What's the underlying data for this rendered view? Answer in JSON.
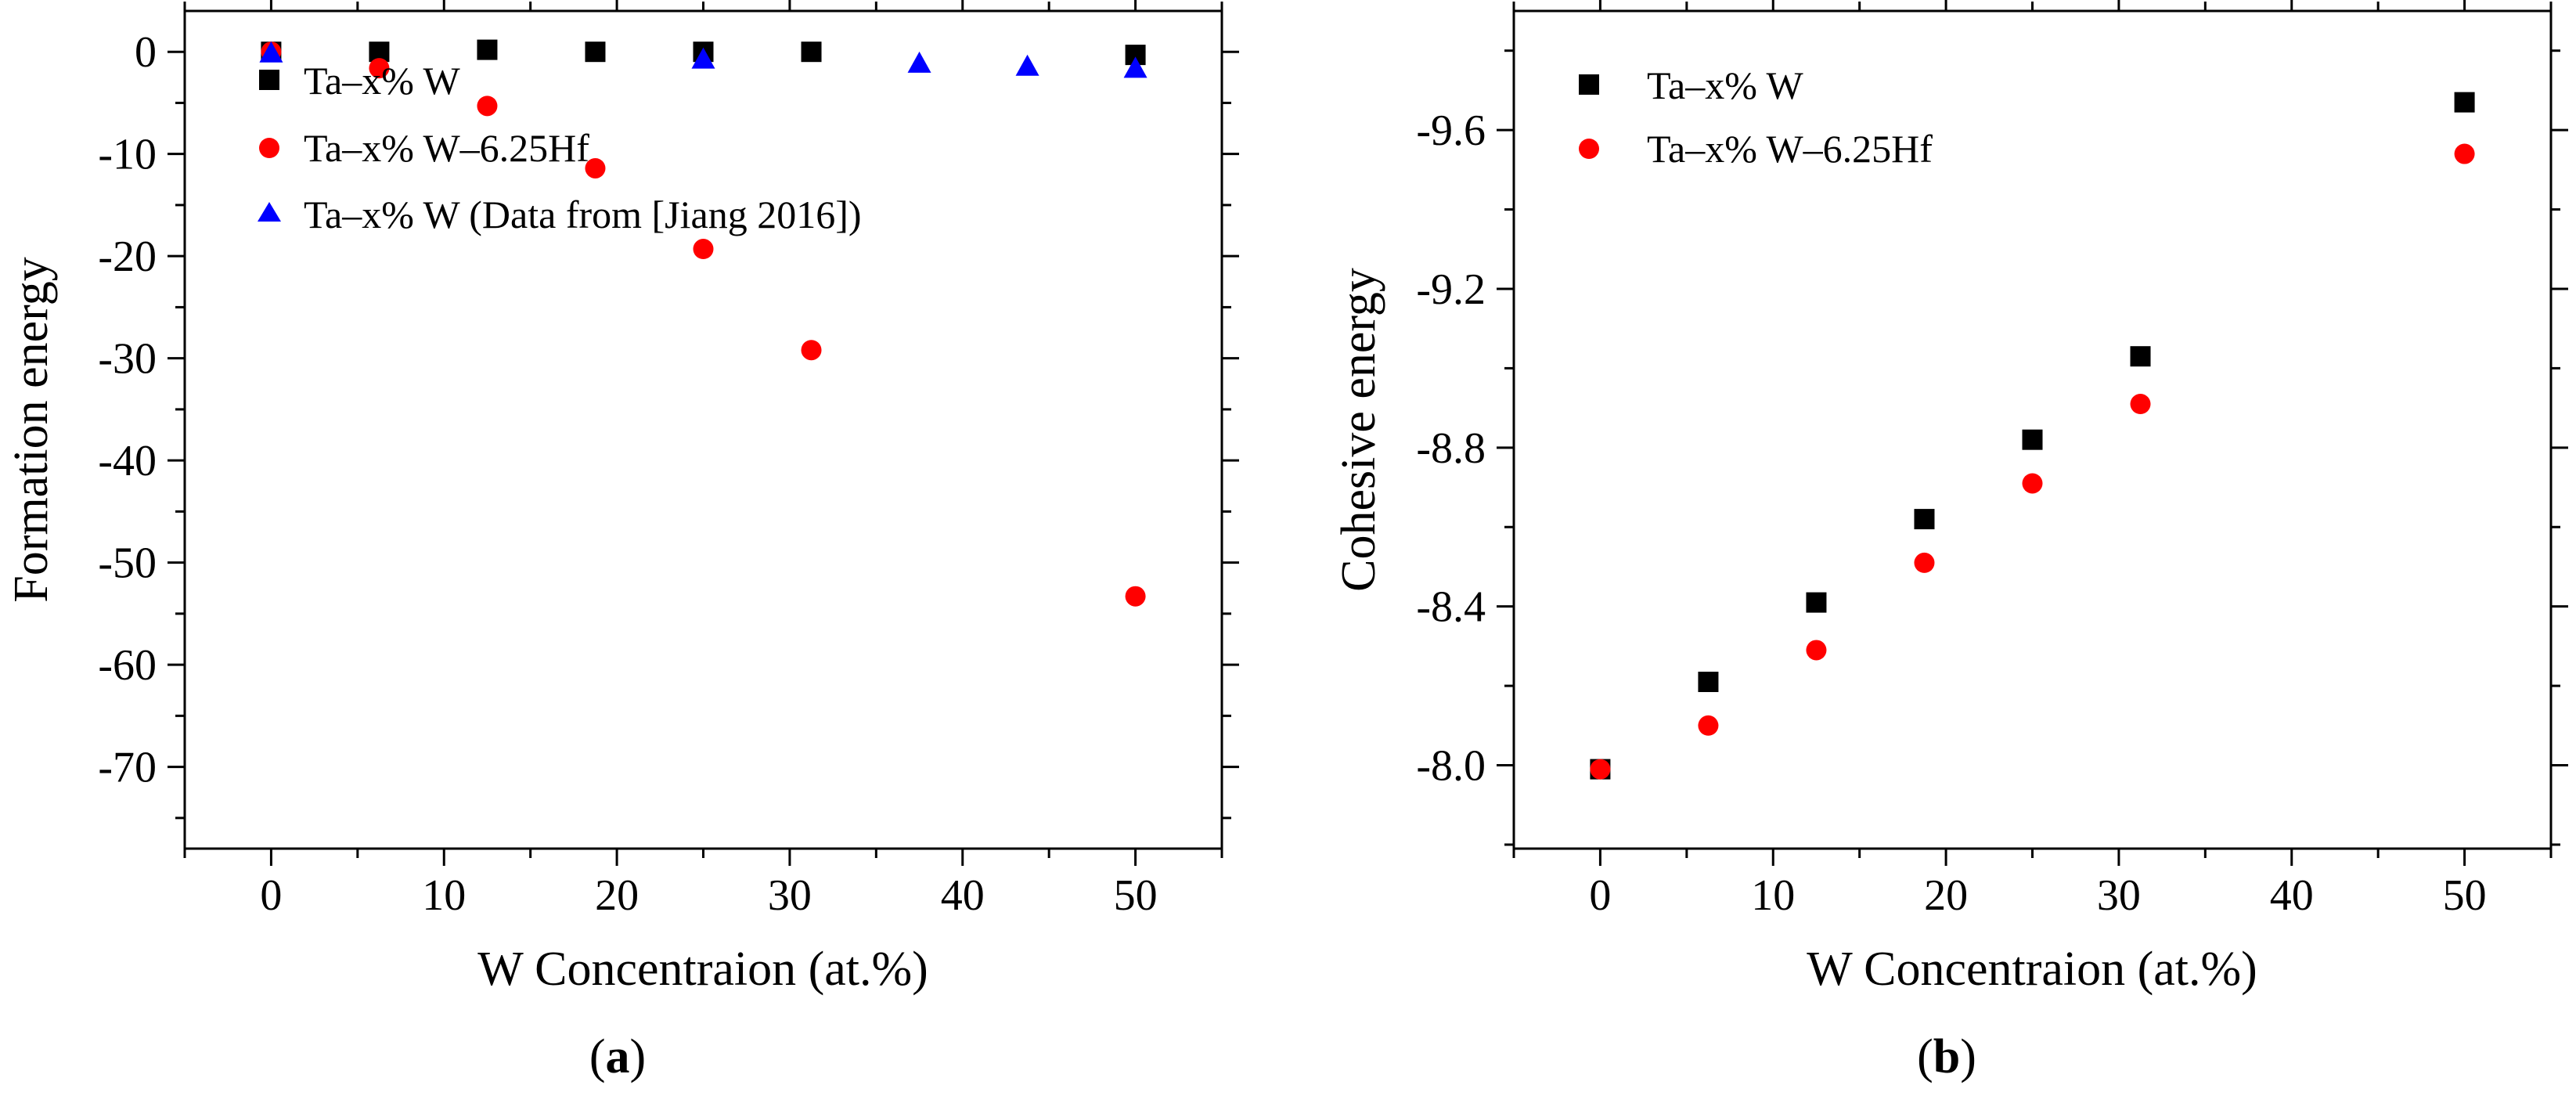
{
  "chart_data": [
    {
      "type": "scatter",
      "panel_label": "a",
      "xlabel": "W Concentraion (at.%)",
      "ylabel": "Formation energy",
      "xlim": [
        -5,
        55
      ],
      "ylim": [
        -78,
        4
      ],
      "y_inverted": true,
      "xticks": [
        0,
        10,
        20,
        30,
        40,
        50
      ],
      "xtick_labels": [
        "0",
        "10",
        "20",
        "30",
        "40",
        "50"
      ],
      "yticks": [
        0,
        -10,
        -20,
        -30,
        -40,
        -50,
        -60,
        -70
      ],
      "ytick_labels": [
        "0",
        "-10",
        "-20",
        "-30",
        "-40",
        "-50",
        "-60",
        "-70"
      ],
      "legend_position": "top-left",
      "series": [
        {
          "name": "Ta–x% W",
          "marker": "square",
          "color": "#000000",
          "x": [
            0,
            6.25,
            12.5,
            18.75,
            25,
            31.25,
            50
          ],
          "y": [
            0,
            0,
            0.2,
            0,
            0,
            0,
            -0.3
          ]
        },
        {
          "name": "Ta–x% W–6.25Hf",
          "marker": "circle",
          "color": "#ff0000",
          "x": [
            0,
            6.25,
            12.5,
            18.75,
            25,
            31.25,
            50
          ],
          "y": [
            0,
            -1.6,
            -5.3,
            -11.4,
            -19.3,
            -29.2,
            -53.3
          ]
        },
        {
          "name": "Ta–x% W (Data from [Jiang 2016])",
          "marker": "triangle",
          "color": "#0000ff",
          "x": [
            0,
            25,
            37.5,
            43.75,
            50
          ],
          "y": [
            -0.2,
            -0.8,
            -1.2,
            -1.5,
            -1.7
          ]
        }
      ]
    },
    {
      "type": "scatter",
      "panel_label": "b",
      "xlabel": "W Concentraion (at.%)",
      "ylabel": "Cohesive energy",
      "xlim": [
        -5,
        55
      ],
      "ylim": [
        -7.79,
        -9.9
      ],
      "y_inverted": true,
      "xticks": [
        0,
        10,
        20,
        30,
        40,
        50
      ],
      "xtick_labels": [
        "0",
        "10",
        "20",
        "30",
        "40",
        "50"
      ],
      "yticks": [
        -8.0,
        -8.4,
        -8.8,
        -9.2,
        -9.6
      ],
      "ytick_labels": [
        "-8.0",
        "-8.4",
        "-8.8",
        "-9.2",
        "-9.6"
      ],
      "legend_position": "top-left",
      "series": [
        {
          "name": "Ta–x% W",
          "marker": "square",
          "color": "#000000",
          "x": [
            0,
            6.25,
            12.5,
            18.75,
            25,
            31.25,
            50
          ],
          "y": [
            -7.99,
            -8.21,
            -8.41,
            -8.62,
            -8.82,
            -9.03,
            -9.67
          ]
        },
        {
          "name": "Ta–x% W–6.25Hf",
          "marker": "circle",
          "color": "#ff0000",
          "x": [
            0,
            6.25,
            12.5,
            18.75,
            25,
            31.25,
            50
          ],
          "y": [
            -7.99,
            -8.1,
            -8.29,
            -8.51,
            -8.71,
            -8.91,
            -9.54
          ]
        }
      ]
    }
  ]
}
